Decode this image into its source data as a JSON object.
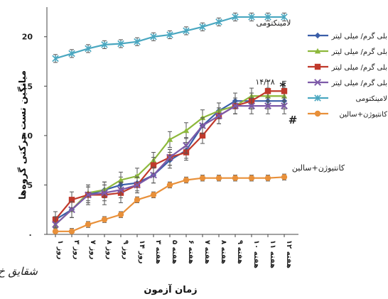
{
  "chart_data": {
    "type": "line",
    "xlabel": "زمان آزمون",
    "ylabel": "میانگین تست حرکتی گروه‌ها",
    "ylim": [
      0,
      23
    ],
    "yticks": [
      {
        "v": 0,
        "label": "۰"
      },
      {
        "v": 5,
        "label": "5"
      },
      {
        "v": 10,
        "label": "10"
      },
      {
        "v": 15,
        "label": "15"
      },
      {
        "v": 20,
        "label": "20"
      }
    ],
    "categories": [
      "روز ۱",
      "روز ۳",
      "روز ۷",
      "روز ۸",
      "روز ۹",
      "روز ۱۴",
      "هفته ۳",
      "هفته ۵",
      "هفته ۶",
      "هفته ۷",
      "هفته ۸",
      "هفته ۹",
      "هفته ۱۰",
      "هفته ۱۱",
      "هفته ۱۲"
    ],
    "series": [
      {
        "name": "بلی گرم/ میلی لیتر",
        "color": "#3a5ea8",
        "marker": "diamond",
        "values": [
          1.5,
          2.5,
          4,
          4.5,
          5,
          5.2,
          6,
          7.5,
          8.5,
          11,
          12.5,
          13.5,
          13.5,
          13.5,
          13.5
        ],
        "errors": [
          0.8,
          0.8,
          0.8,
          0.8,
          0.8,
          0.8,
          0.8,
          0.8,
          0.8,
          0.8,
          0.8,
          0.8,
          0.8,
          0.8,
          0.8
        ]
      },
      {
        "name": "بلی گرم/ میلی لیتر",
        "color": "#8db83c",
        "marker": "triangle",
        "values": [
          1,
          2.5,
          4.2,
          4.5,
          5.5,
          5.9,
          7.5,
          9.6,
          10.5,
          11.8,
          12.5,
          13,
          14,
          14,
          14
        ],
        "errors": [
          0.6,
          0.8,
          0.8,
          0.8,
          0.8,
          0.8,
          0.8,
          0.8,
          0.8,
          0.8,
          0.8,
          0.8,
          0.8,
          0.8,
          0.8
        ]
      },
      {
        "name": "بلی گرم/ میلی لیتر",
        "color": "#c0392b",
        "marker": "square",
        "values": [
          1.5,
          3.5,
          4,
          4,
          4.2,
          5,
          7,
          7.8,
          8.3,
          10,
          12,
          13,
          13.5,
          14.5,
          14.5
        ],
        "errors": [
          0.8,
          0.8,
          1,
          1,
          1,
          0.8,
          0.8,
          0.8,
          0.8,
          0.8,
          0.8,
          0.8,
          0.8,
          1,
          1
        ]
      },
      {
        "name": "بلی گرم/ میلی لیتر",
        "color": "#7d5aa8",
        "marker": "x",
        "values": [
          1,
          2.5,
          4,
          4.2,
          4.5,
          5,
          6,
          7.8,
          9,
          11,
          12,
          13,
          13,
          13,
          13
        ],
        "errors": [
          0.8,
          0.8,
          0.8,
          0.8,
          0.8,
          0.8,
          0.8,
          0.8,
          0.8,
          0.8,
          0.8,
          0.8,
          0.8,
          0.8,
          0.8
        ]
      },
      {
        "name": "لامینکتومی",
        "color": "#4aa7c0",
        "marker": "star",
        "values": [
          17.8,
          18.3,
          18.8,
          19.2,
          19.3,
          19.5,
          20,
          20.2,
          20.6,
          21,
          21.5,
          22,
          22,
          22,
          22
        ],
        "errors": [
          0.4,
          0.4,
          0.4,
          0.4,
          0.4,
          0.4,
          0.4,
          0.4,
          0.4,
          0.4,
          0.4,
          0.4,
          0.4,
          0.4,
          0.4
        ]
      },
      {
        "name": "کانتیوژن+سالین",
        "color": "#e8903a",
        "marker": "circle",
        "values": [
          0.3,
          0.3,
          1,
          1.5,
          2,
          3.5,
          4,
          5,
          5.5,
          5.7,
          5.7,
          5.7,
          5.7,
          5.7,
          5.8
        ],
        "errors": [
          0.3,
          0.3,
          0.3,
          0.3,
          0.3,
          0.3,
          0.3,
          0.3,
          0.3,
          0.3,
          0.3,
          0.3,
          0.3,
          0.3,
          0.3
        ]
      }
    ],
    "annotations": {
      "laminectomy": "لامینکتومی",
      "significance_value": "۱۴/۲۸",
      "asterisk": "*",
      "hash": "#",
      "saline": "کانتیوژن+سالین"
    },
    "legend_position": "right",
    "grid": false
  },
  "signature": "شقایق خ"
}
